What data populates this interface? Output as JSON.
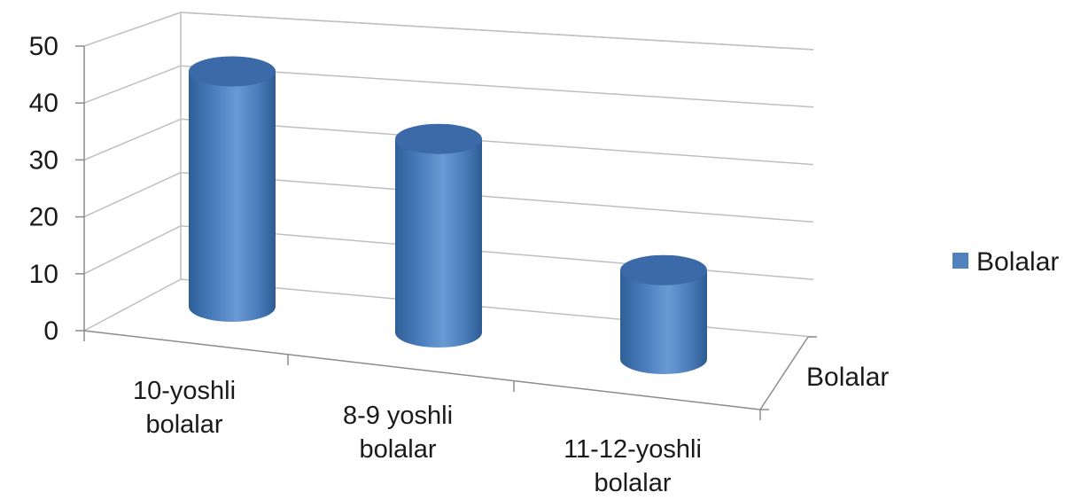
{
  "chart_data": {
    "type": "bar",
    "style": "3d-cylinder",
    "categories": [
      "10-yoshli bolalar",
      "8-9 yoshli bolalar",
      "11-12-yoshli bolalar"
    ],
    "category_label_lines": [
      [
        "10-yoshli",
        "bolalar"
      ],
      [
        "8-9 yoshli",
        "bolalar"
      ],
      [
        "11-12-yoshli",
        "bolalar"
      ]
    ],
    "series": [
      {
        "name": "Bolalar",
        "values": [
          45,
          37,
          17
        ],
        "color": "#4F81BD"
      }
    ],
    "yticks": [
      0,
      10,
      20,
      30,
      40,
      50
    ],
    "ylim": [
      0,
      50
    ],
    "depth_axis_label": "Bolalar",
    "legend_position": "right",
    "grid": true
  }
}
